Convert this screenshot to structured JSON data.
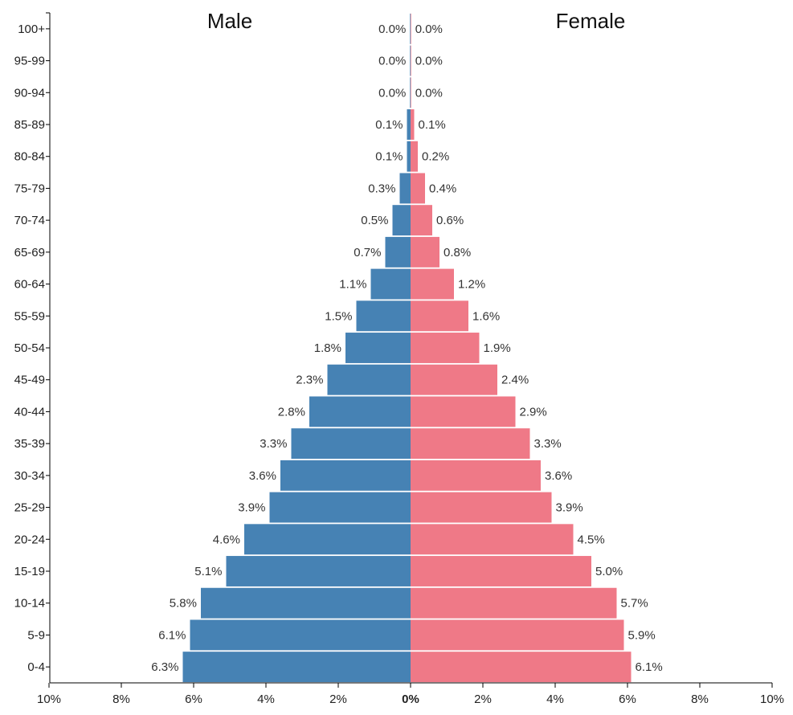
{
  "chart_data": {
    "type": "bar",
    "orientation": "horizontal-butterfly",
    "titles": {
      "left": "Male",
      "right": "Female"
    },
    "categories": [
      "100+",
      "95-99",
      "90-94",
      "85-89",
      "80-84",
      "75-79",
      "70-74",
      "65-69",
      "60-64",
      "55-59",
      "50-54",
      "45-49",
      "40-44",
      "35-39",
      "30-34",
      "25-29",
      "20-24",
      "15-19",
      "10-14",
      "5-9",
      "0-4"
    ],
    "series": [
      {
        "name": "Male",
        "color": "#4682b4",
        "values": [
          0.0,
          0.0,
          0.0,
          0.1,
          0.1,
          0.3,
          0.5,
          0.7,
          1.1,
          1.5,
          1.8,
          2.3,
          2.8,
          3.3,
          3.6,
          3.9,
          4.6,
          5.1,
          5.8,
          6.1,
          6.3
        ],
        "labels": [
          "0.0%",
          "0.0%",
          "0.0%",
          "0.1%",
          "0.1%",
          "0.3%",
          "0.5%",
          "0.7%",
          "1.1%",
          "1.5%",
          "1.8%",
          "2.3%",
          "2.8%",
          "3.3%",
          "3.6%",
          "3.9%",
          "4.6%",
          "5.1%",
          "5.8%",
          "6.1%",
          "6.3%"
        ]
      },
      {
        "name": "Female",
        "color": "#ef7987",
        "values": [
          0.0,
          0.0,
          0.0,
          0.1,
          0.2,
          0.4,
          0.6,
          0.8,
          1.2,
          1.6,
          1.9,
          2.4,
          2.9,
          3.3,
          3.6,
          3.9,
          4.5,
          5.0,
          5.7,
          5.9,
          6.1
        ],
        "labels": [
          "0.0%",
          "0.0%",
          "0.0%",
          "0.1%",
          "0.2%",
          "0.4%",
          "0.6%",
          "0.8%",
          "1.2%",
          "1.6%",
          "1.9%",
          "2.4%",
          "2.9%",
          "3.3%",
          "3.6%",
          "3.9%",
          "4.5%",
          "5.0%",
          "5.7%",
          "5.9%",
          "6.1%"
        ]
      }
    ],
    "x_ticks": [
      {
        "value": -10,
        "label": "10%"
      },
      {
        "value": -8,
        "label": "8%"
      },
      {
        "value": -6,
        "label": "6%"
      },
      {
        "value": -4,
        "label": "4%"
      },
      {
        "value": -2,
        "label": "2%"
      },
      {
        "value": 0,
        "label": "0%"
      },
      {
        "value": 2,
        "label": "2%"
      },
      {
        "value": 4,
        "label": "4%"
      },
      {
        "value": 6,
        "label": "6%"
      },
      {
        "value": 8,
        "label": "8%"
      },
      {
        "value": 10,
        "label": "10%"
      }
    ],
    "xlim": [
      -10,
      10
    ],
    "xlabel": "",
    "ylabel": "",
    "grid": false,
    "legend": "none"
  }
}
